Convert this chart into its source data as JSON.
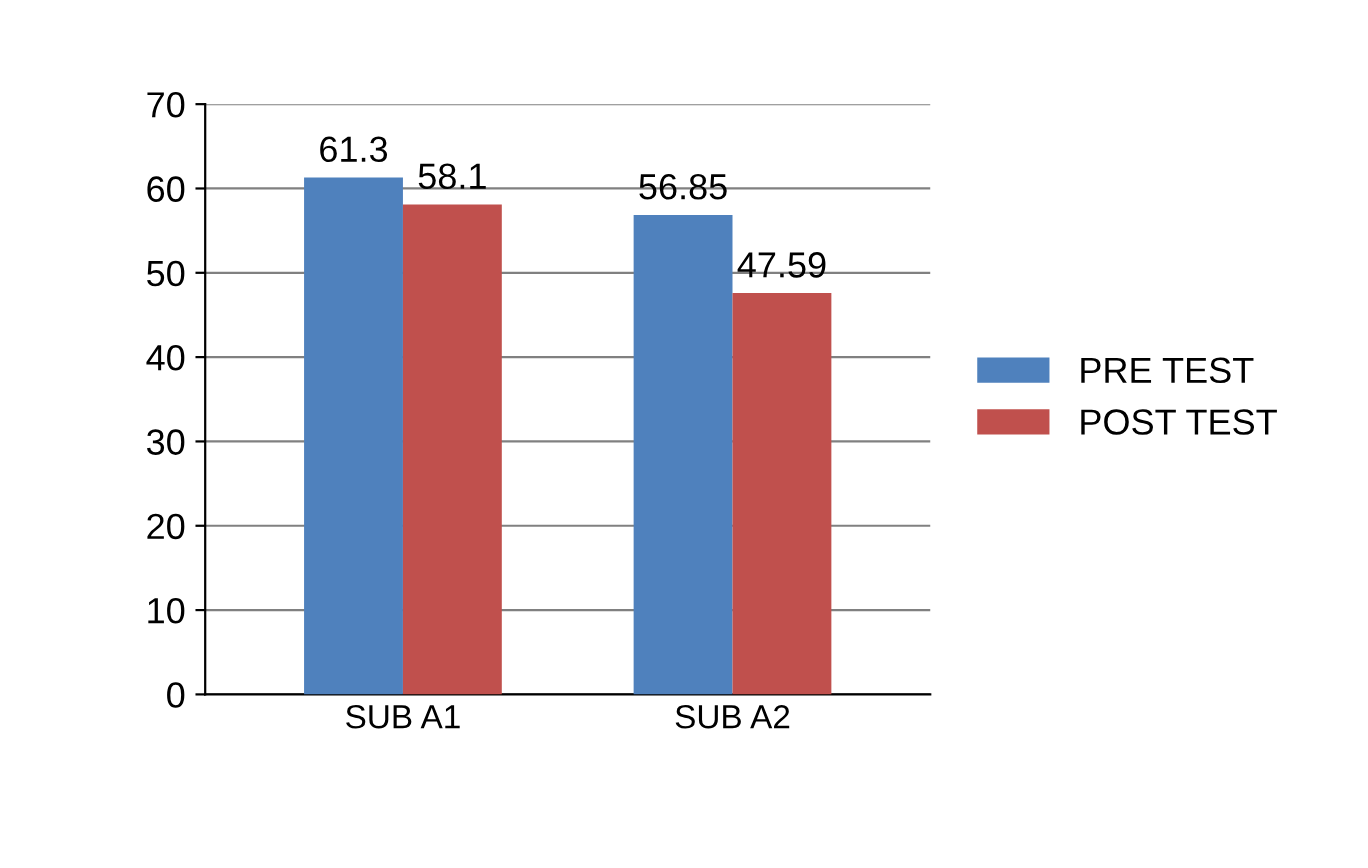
{
  "chart_data": {
    "type": "bar",
    "categories": [
      "SUB A1",
      "SUB A2"
    ],
    "series": [
      {
        "name": "PRE TEST",
        "color": "#4f81bd",
        "values": [
          61.3,
          56.85
        ]
      },
      {
        "name": "POST TEST",
        "color": "#c0504d",
        "values": [
          58.1,
          47.59
        ]
      }
    ],
    "ylim": [
      0,
      70
    ],
    "yticks": [
      0,
      10,
      20,
      30,
      40,
      50,
      60,
      70
    ],
    "grid": "y",
    "legend": "right",
    "data_labels": true
  }
}
